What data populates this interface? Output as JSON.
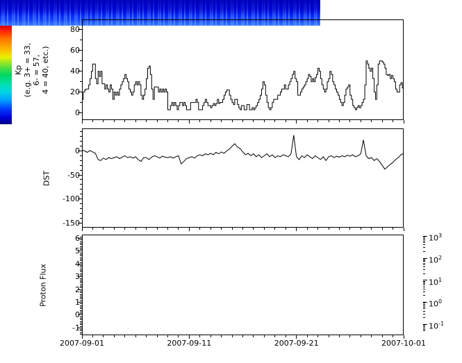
{
  "figure": {
    "background": "#ffffff",
    "axis_color": "#000000",
    "line_color": "#000000",
    "x_axis": {
      "tick_labels": [
        "2007-09-01",
        "2007-09-11",
        "2007-09-21",
        "2007-10-01"
      ],
      "tick_days": [
        0,
        10,
        20,
        30
      ],
      "minor_interval_days": 1,
      "range_days": [
        0,
        30
      ]
    },
    "panels": {
      "kp": {
        "ylabel_lines": [
          "Kp",
          "(e.g. 3+ = 33,",
          "6- = 57,",
          "4 = 40, etc.)"
        ],
        "y_tick_values": [
          0,
          20,
          40,
          60,
          80
        ],
        "y_minor_interval": 10,
        "y_range": [
          -7,
          90
        ]
      },
      "dst": {
        "ylabel_lines": [
          "DST"
        ],
        "y_tick_values": [
          0,
          -50,
          -100,
          -150
        ],
        "y_minor_interval": 10,
        "y_range": [
          -160,
          47
        ]
      },
      "proton": {
        "ylabel_lines": [
          "Proton Flux"
        ],
        "y_tick_values": [
          -1,
          0,
          1,
          2,
          3,
          4,
          5,
          6
        ],
        "y_minor_interval": 0.125,
        "y_range": [
          -1.58,
          6.3
        ]
      }
    },
    "colorbar": {
      "scale": "log10",
      "exponents": [
        3,
        2,
        1,
        0,
        -1
      ],
      "colors_top_to_bottom": [
        {
          "at": 0.0,
          "color": "#d40000"
        },
        {
          "at": 0.05,
          "color": "#ff2000"
        },
        {
          "at": 0.14,
          "color": "#ff7a00"
        },
        {
          "at": 0.24,
          "color": "#ffb800"
        },
        {
          "at": 0.32,
          "color": "#e8f000"
        },
        {
          "at": 0.42,
          "color": "#58e03c"
        },
        {
          "at": 0.5,
          "color": "#00d860"
        },
        {
          "at": 0.6,
          "color": "#00e0b4"
        },
        {
          "at": 0.68,
          "color": "#00d2e8"
        },
        {
          "at": 0.76,
          "color": "#009cff"
        },
        {
          "at": 0.84,
          "color": "#0040ff"
        },
        {
          "at": 0.93,
          "color": "#0000dc"
        },
        {
          "at": 1.0,
          "color": "#000082"
        }
      ]
    }
  },
  "chart_data": [
    {
      "type": "line",
      "style": "step",
      "title": "Kp",
      "ylabel": "Kp (e.g. 3+ = 33, 6- = 57, 4 = 40, etc.)",
      "x_start": "2007-09-01",
      "step_hours": 3,
      "ylim": [
        -7,
        90
      ],
      "color": "#000000",
      "values": [
        13,
        20,
        22,
        23,
        23,
        27,
        33,
        40,
        47,
        47,
        33,
        28,
        40,
        35,
        40,
        28,
        28,
        23,
        27,
        23,
        20,
        27,
        23,
        13,
        20,
        17,
        20,
        17,
        23,
        27,
        30,
        33,
        37,
        33,
        30,
        23,
        20,
        17,
        20,
        27,
        30,
        27,
        30,
        27,
        17,
        13,
        17,
        23,
        33,
        43,
        45,
        37,
        23,
        13,
        25,
        25,
        25,
        20,
        23,
        20,
        23,
        20,
        23,
        20,
        3,
        3,
        7,
        10,
        7,
        10,
        7,
        3,
        7,
        10,
        10,
        7,
        10,
        7,
        3,
        3,
        3,
        10,
        10,
        10,
        10,
        13,
        10,
        3,
        3,
        3,
        7,
        10,
        13,
        10,
        7,
        7,
        5,
        7,
        9,
        7,
        9,
        13,
        9,
        10,
        10,
        13,
        17,
        20,
        22,
        22,
        17,
        13,
        10,
        8,
        13,
        13,
        8,
        5,
        3,
        7,
        7,
        3,
        3,
        8,
        8,
        3,
        3,
        5,
        3,
        5,
        7,
        10,
        13,
        17,
        23,
        30,
        27,
        17,
        10,
        5,
        3,
        5,
        10,
        13,
        13,
        13,
        17,
        17,
        20,
        23,
        23,
        27,
        23,
        23,
        27,
        30,
        33,
        37,
        40,
        33,
        30,
        17,
        17,
        20,
        23,
        25,
        27,
        30,
        33,
        37,
        35,
        30,
        33,
        30,
        34,
        37,
        43,
        40,
        33,
        27,
        23,
        20,
        23,
        30,
        33,
        40,
        37,
        30,
        27,
        23,
        20,
        17,
        13,
        10,
        7,
        10,
        17,
        23,
        25,
        27,
        17,
        13,
        7,
        5,
        3,
        5,
        7,
        5,
        7,
        10,
        13,
        27,
        50,
        47,
        43,
        40,
        43,
        33,
        20,
        13,
        27,
        47,
        50,
        50,
        49,
        47,
        43,
        37,
        36,
        37,
        33,
        36,
        33,
        30,
        23,
        20,
        20,
        27,
        29,
        24
      ]
    },
    {
      "type": "line",
      "title": "DST",
      "ylabel": "DST",
      "x_start": "2007-09-01",
      "step_hours": 6,
      "ylim": [
        -160,
        47
      ],
      "color": "#000000",
      "values": [
        2,
        0,
        -3,
        1,
        -2,
        -5,
        -18,
        -20,
        -15,
        -18,
        -14,
        -16,
        -14,
        -12,
        -16,
        -13,
        -10,
        -14,
        -12,
        -15,
        -12,
        -18,
        -22,
        -14,
        -14,
        -18,
        -13,
        -10,
        -12,
        -15,
        -11,
        -13,
        -14,
        -12,
        -15,
        -12,
        -10,
        -27,
        -22,
        -16,
        -14,
        -12,
        -15,
        -10,
        -8,
        -10,
        -6,
        -8,
        -5,
        -8,
        -3,
        -6,
        -2,
        -5,
        0,
        4,
        10,
        15,
        8,
        5,
        -2,
        -8,
        -5,
        -10,
        -6,
        -12,
        -8,
        -14,
        -10,
        -6,
        -12,
        -8,
        -14,
        -10,
        -12,
        -8,
        -10,
        -12,
        -6,
        33,
        -12,
        -18,
        -10,
        -14,
        -8,
        -12,
        -16,
        -10,
        -14,
        -18,
        -12,
        -20,
        -12,
        -10,
        -14,
        -11,
        -13,
        -10,
        -12,
        -9,
        -11,
        -8,
        -12,
        -10,
        -6,
        23,
        -10,
        -16,
        -14,
        -20,
        -16,
        -22,
        -30,
        -38,
        -33,
        -28,
        -24,
        -18,
        -14,
        -8,
        -5
      ]
    },
    {
      "type": "heatmap",
      "title": "Proton Flux",
      "ylabel": "Proton Flux",
      "band_y_range": [
        3,
        5
      ],
      "value_range_approx": [
        0.05,
        0.3
      ],
      "colormap": "jet",
      "colorbar_tick_labels": [
        "10^3",
        "10^2",
        "10^1",
        "10^0",
        "10^-1"
      ],
      "band_colors": {
        "base_top": "#0000c8",
        "base_mid": "#0520f5",
        "base_bottom": "#3c7dff",
        "streak": "#7ab4ff"
      }
    }
  ]
}
